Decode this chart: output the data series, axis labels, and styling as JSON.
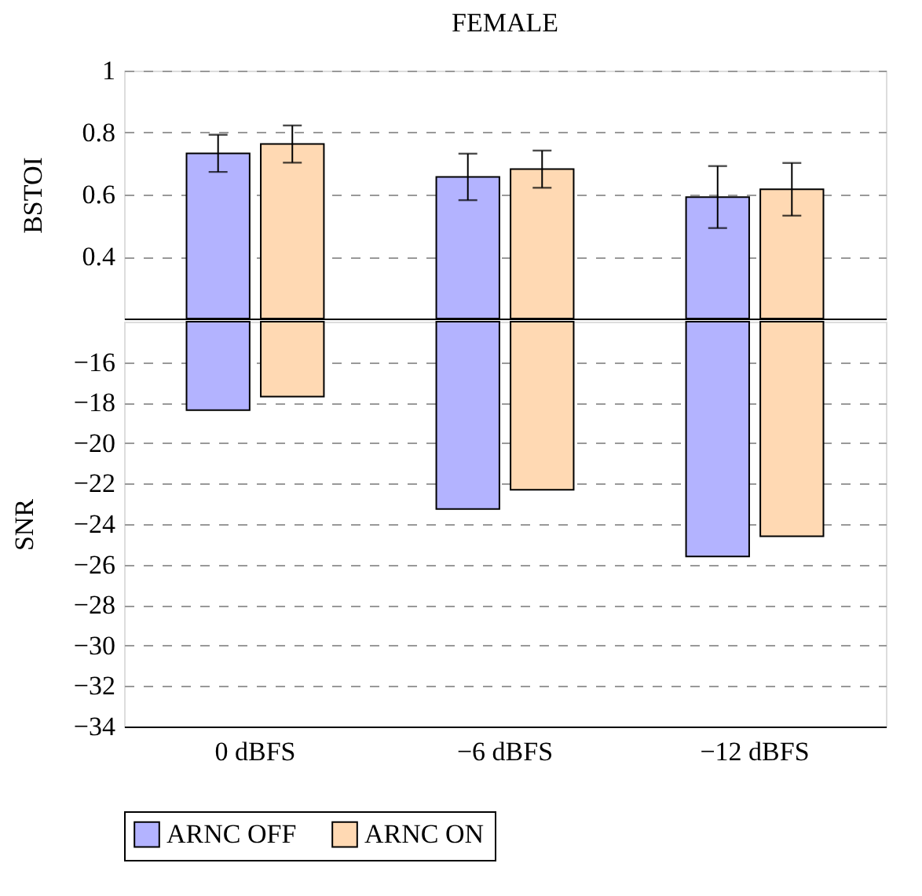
{
  "chart_data": [
    {
      "type": "bar",
      "title": "FEMALE",
      "ylabel": "BSTOI",
      "categories": [
        null,
        null,
        null
      ],
      "series": [
        {
          "color": "#b3b3ff",
          "values": [
            0.733,
            0.657,
            0.592
          ],
          "errors": [
            0.06,
            0.075,
            0.1
          ]
        },
        {
          "color": "#ffd9b3",
          "values": [
            0.763,
            0.682,
            0.617
          ],
          "errors": [
            0.06,
            0.06,
            0.085
          ]
        }
      ],
      "ylim": [
        0.2,
        1.0
      ],
      "yticks": [
        0.4,
        0.6,
        0.8,
        {
          "value": 1,
          "label": "1"
        }
      ],
      "grid": "y",
      "tick_labels": "y",
      "legend": false
    },
    {
      "type": "bar",
      "ylabel": "SNR",
      "categories": [
        "0 dBFS",
        "−6 dBFS",
        "−12 dBFS"
      ],
      "series": [
        {
          "name": "ARNC OFF",
          "color": "#b3b3ff",
          "values": [
            -18.37,
            -23.25,
            -25.6
          ]
        },
        {
          "name": "ARNC ON",
          "color": "#ffd9b3",
          "values": [
            -17.7,
            -22.3,
            -24.6
          ]
        }
      ],
      "ylim": [
        -34,
        -14
      ],
      "yticks": [
        -34,
        -32,
        -30,
        -28,
        -26,
        -24,
        -22,
        -20,
        -18,
        -16
      ],
      "grid": "y",
      "legend": "bottom"
    }
  ]
}
